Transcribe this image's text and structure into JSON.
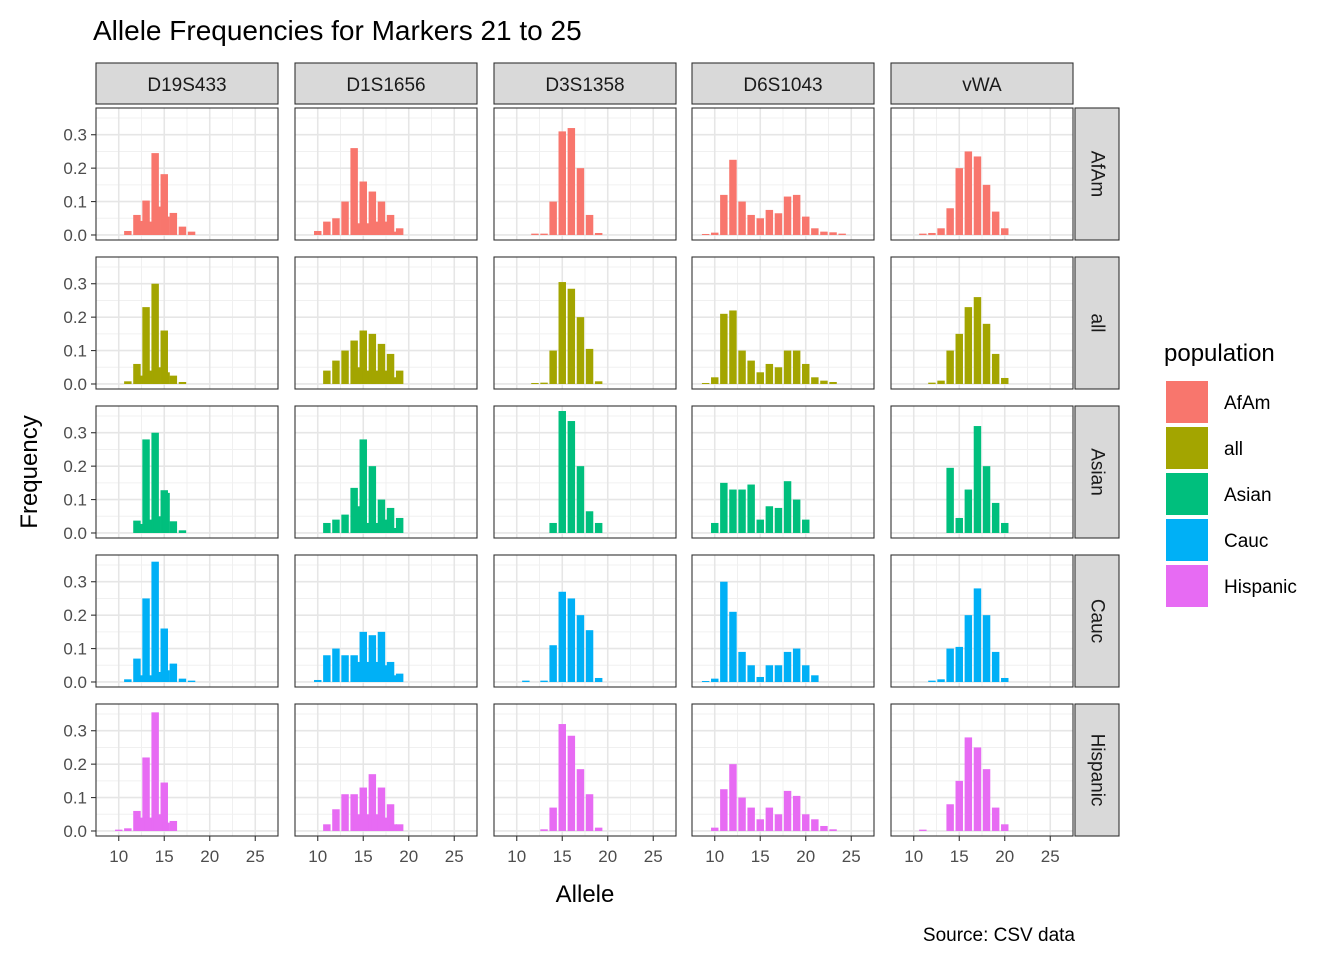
{
  "chart_data": {
    "type": "bar",
    "title": "Allele Frequencies for Markers 21 to 25",
    "xlabel": "Allele",
    "ylabel": "Frequency",
    "caption": "Source: CSV data",
    "xlim": [
      7.5,
      27.5
    ],
    "ylim": [
      -0.015,
      0.38
    ],
    "x_ticks": [
      10,
      15,
      20,
      25
    ],
    "y_ticks": [
      0.0,
      0.1,
      0.2,
      0.3
    ],
    "y_tick_labels": [
      "0.0",
      "0.1",
      "0.2",
      "0.3"
    ],
    "grid": true,
    "legend": {
      "title": "population",
      "position": "right"
    },
    "markers": [
      "D19S433",
      "D1S1656",
      "D3S1358",
      "D6S1043",
      "vWA"
    ],
    "populations": [
      "AfAm",
      "all",
      "Asian",
      "Cauc",
      "Hispanic"
    ],
    "colors": {
      "AfAm": "#F8766D",
      "all": "#A3A500",
      "Asian": "#00BF7D",
      "Cauc": "#00B0F6",
      "Hispanic": "#E76BF3"
    },
    "panels": [
      {
        "marker": "D19S433",
        "population": "AfAm",
        "x": [
          11,
          12,
          12.2,
          13,
          13.2,
          14,
          14.2,
          15,
          15.2,
          16,
          17,
          18
        ],
        "y": [
          0.012,
          0.06,
          0.042,
          0.103,
          0.04,
          0.245,
          0.085,
          0.182,
          0.055,
          0.066,
          0.025,
          0.01
        ]
      },
      {
        "marker": "D19S433",
        "population": "all",
        "x": [
          11,
          12,
          12.2,
          13,
          13.2,
          14,
          14.2,
          15,
          15.2,
          16,
          17
        ],
        "y": [
          0.008,
          0.06,
          0.025,
          0.23,
          0.04,
          0.3,
          0.05,
          0.16,
          0.035,
          0.025,
          0.006
        ]
      },
      {
        "marker": "D19S433",
        "population": "Asian",
        "x": [
          12,
          12.2,
          13,
          13.2,
          14,
          14.2,
          15,
          15.2,
          16,
          17
        ],
        "y": [
          0.037,
          0.027,
          0.28,
          0.04,
          0.3,
          0.05,
          0.128,
          0.12,
          0.035,
          0.008
        ]
      },
      {
        "marker": "D19S433",
        "population": "Cauc",
        "x": [
          11,
          12,
          12.2,
          13,
          13.2,
          14,
          14.2,
          15,
          15.2,
          16,
          17,
          18
        ],
        "y": [
          0.008,
          0.07,
          0.02,
          0.25,
          0.02,
          0.36,
          0.03,
          0.16,
          0.035,
          0.055,
          0.01,
          0.004
        ]
      },
      {
        "marker": "D19S433",
        "population": "Hispanic",
        "x": [
          10,
          11,
          12,
          12.2,
          13,
          13.2,
          14,
          14.2,
          15,
          15.2,
          16
        ],
        "y": [
          0.004,
          0.008,
          0.06,
          0.04,
          0.22,
          0.04,
          0.355,
          0.05,
          0.145,
          0.025,
          0.03
        ]
      },
      {
        "marker": "D1S1656",
        "population": "AfAm",
        "x": [
          10,
          11,
          12,
          13,
          14,
          14.3,
          15,
          15.3,
          16,
          16.3,
          17,
          17.3,
          18,
          18.3,
          19
        ],
        "y": [
          0.012,
          0.04,
          0.05,
          0.1,
          0.26,
          0.035,
          0.16,
          0.035,
          0.13,
          0.04,
          0.1,
          0.04,
          0.06,
          0.01,
          0.02
        ]
      },
      {
        "marker": "D1S1656",
        "population": "all",
        "x": [
          11,
          12,
          13,
          14,
          14.3,
          15,
          15.3,
          16,
          16.3,
          17,
          17.3,
          18,
          18.3,
          19
        ],
        "y": [
          0.04,
          0.07,
          0.1,
          0.13,
          0.05,
          0.16,
          0.04,
          0.15,
          0.04,
          0.12,
          0.04,
          0.09,
          0.02,
          0.04
        ]
      },
      {
        "marker": "D1S1656",
        "population": "Asian",
        "x": [
          11,
          12,
          13,
          14,
          14.3,
          15,
          15.3,
          16,
          16.3,
          17,
          17.3,
          18,
          18.3,
          19
        ],
        "y": [
          0.03,
          0.04,
          0.055,
          0.135,
          0.08,
          0.28,
          0.03,
          0.2,
          0.03,
          0.1,
          0.04,
          0.075,
          0.015,
          0.045
        ]
      },
      {
        "marker": "D1S1656",
        "population": "Cauc",
        "x": [
          10,
          11,
          12,
          13,
          14,
          14.3,
          15,
          15.3,
          16,
          16.3,
          17,
          17.3,
          18,
          18.3,
          19
        ],
        "y": [
          0.006,
          0.08,
          0.1,
          0.08,
          0.08,
          0.06,
          0.15,
          0.06,
          0.14,
          0.06,
          0.15,
          0.05,
          0.06,
          0.02,
          0.025
        ]
      },
      {
        "marker": "D1S1656",
        "population": "Hispanic",
        "x": [
          11,
          12,
          13,
          14,
          14.3,
          15,
          15.3,
          16,
          16.3,
          17,
          17.3,
          18,
          18.3,
          19
        ],
        "y": [
          0.02,
          0.065,
          0.11,
          0.11,
          0.05,
          0.13,
          0.05,
          0.17,
          0.05,
          0.13,
          0.04,
          0.08,
          0.02,
          0.02
        ]
      },
      {
        "marker": "D3S1358",
        "population": "AfAm",
        "x": [
          12,
          13,
          14,
          15,
          16,
          17,
          18,
          19
        ],
        "y": [
          0.004,
          0.004,
          0.1,
          0.31,
          0.32,
          0.2,
          0.06,
          0.006
        ]
      },
      {
        "marker": "D3S1358",
        "population": "all",
        "x": [
          12,
          13,
          14,
          15,
          16,
          17,
          18,
          19
        ],
        "y": [
          0.003,
          0.004,
          0.1,
          0.305,
          0.285,
          0.2,
          0.105,
          0.008
        ]
      },
      {
        "marker": "D3S1358",
        "population": "Asian",
        "x": [
          14,
          15,
          16,
          17,
          18,
          19
        ],
        "y": [
          0.03,
          0.365,
          0.335,
          0.2,
          0.065,
          0.03
        ]
      },
      {
        "marker": "D3S1358",
        "population": "Cauc",
        "x": [
          11,
          13,
          14,
          15,
          16,
          17,
          18,
          19
        ],
        "y": [
          0.004,
          0.004,
          0.11,
          0.27,
          0.25,
          0.2,
          0.155,
          0.012
        ]
      },
      {
        "marker": "D3S1358",
        "population": "Hispanic",
        "x": [
          13,
          14,
          15,
          16,
          17,
          18,
          19
        ],
        "y": [
          0.005,
          0.07,
          0.32,
          0.285,
          0.185,
          0.11,
          0.01
        ]
      },
      {
        "marker": "D6S1043",
        "population": "AfAm",
        "x": [
          9,
          10,
          11,
          12,
          13,
          14,
          15,
          16,
          17,
          18,
          19,
          20,
          21,
          22,
          23,
          24
        ],
        "y": [
          0.003,
          0.007,
          0.12,
          0.225,
          0.1,
          0.06,
          0.05,
          0.075,
          0.065,
          0.115,
          0.12,
          0.055,
          0.02,
          0.01,
          0.008,
          0.004
        ]
      },
      {
        "marker": "D6S1043",
        "population": "all",
        "x": [
          9,
          10,
          11,
          12,
          13,
          14,
          15,
          16,
          17,
          18,
          19,
          20,
          21,
          22,
          23
        ],
        "y": [
          0.003,
          0.02,
          0.21,
          0.22,
          0.1,
          0.07,
          0.035,
          0.06,
          0.05,
          0.1,
          0.1,
          0.06,
          0.02,
          0.01,
          0.006
        ]
      },
      {
        "marker": "D6S1043",
        "population": "Asian",
        "x": [
          10,
          11,
          12,
          13,
          14,
          15,
          16,
          17,
          18,
          19,
          20
        ],
        "y": [
          0.03,
          0.15,
          0.13,
          0.13,
          0.145,
          0.04,
          0.08,
          0.075,
          0.155,
          0.1,
          0.04
        ]
      },
      {
        "marker": "D6S1043",
        "population": "Cauc",
        "x": [
          9,
          10,
          11,
          12,
          13,
          14,
          15,
          16,
          17,
          18,
          19,
          20,
          21
        ],
        "y": [
          0.003,
          0.01,
          0.3,
          0.21,
          0.09,
          0.05,
          0.015,
          0.05,
          0.05,
          0.09,
          0.1,
          0.05,
          0.02
        ]
      },
      {
        "marker": "D6S1043",
        "population": "Hispanic",
        "x": [
          10,
          11,
          12,
          13,
          14,
          15,
          16,
          17,
          18,
          19,
          20,
          21,
          22,
          23
        ],
        "y": [
          0.01,
          0.125,
          0.2,
          0.1,
          0.07,
          0.035,
          0.07,
          0.05,
          0.12,
          0.105,
          0.05,
          0.035,
          0.015,
          0.005
        ]
      },
      {
        "marker": "vWA",
        "population": "AfAm",
        "x": [
          11,
          12,
          13,
          14,
          15,
          16,
          17,
          18,
          19,
          20
        ],
        "y": [
          0.004,
          0.006,
          0.02,
          0.08,
          0.2,
          0.25,
          0.235,
          0.15,
          0.07,
          0.02
        ]
      },
      {
        "marker": "vWA",
        "population": "all",
        "x": [
          12,
          13,
          14,
          15,
          16,
          17,
          18,
          19,
          20
        ],
        "y": [
          0.004,
          0.01,
          0.1,
          0.15,
          0.23,
          0.26,
          0.18,
          0.09,
          0.018
        ]
      },
      {
        "marker": "vWA",
        "population": "Asian",
        "x": [
          14,
          15,
          16,
          17,
          18,
          19,
          20
        ],
        "y": [
          0.195,
          0.045,
          0.13,
          0.32,
          0.2,
          0.09,
          0.03
        ]
      },
      {
        "marker": "vWA",
        "population": "Cauc",
        "x": [
          12,
          13,
          14,
          15,
          16,
          17,
          18,
          19,
          20
        ],
        "y": [
          0.004,
          0.008,
          0.1,
          0.105,
          0.2,
          0.28,
          0.2,
          0.09,
          0.012
        ]
      },
      {
        "marker": "vWA",
        "population": "Hispanic",
        "x": [
          11,
          14,
          15,
          16,
          17,
          18,
          19,
          20
        ],
        "y": [
          0.004,
          0.08,
          0.15,
          0.28,
          0.25,
          0.185,
          0.07,
          0.02
        ]
      }
    ]
  }
}
